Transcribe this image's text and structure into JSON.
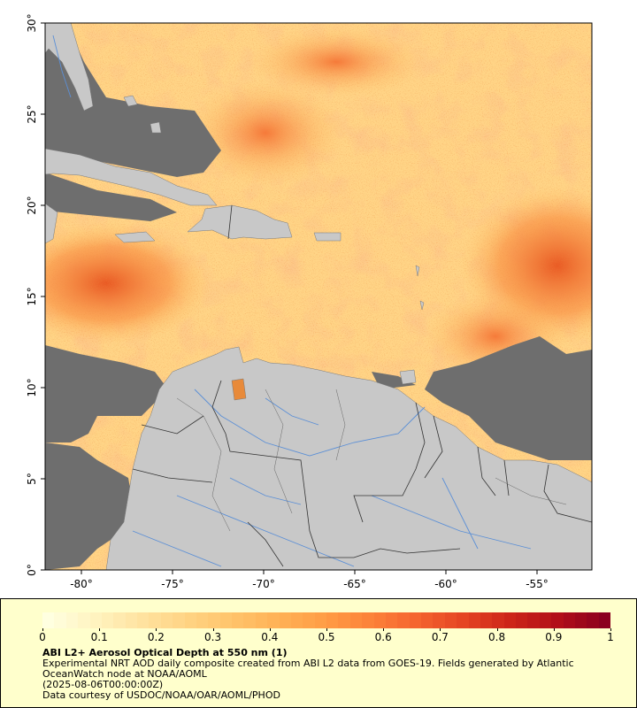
{
  "map": {
    "colors": {
      "land": "#c8c8c8",
      "no_data": "#6e6e6e",
      "rivers": "#5b8fd6",
      "borders": "#333333",
      "panel_bg": "#ffffcc"
    },
    "latitude_labels": [
      "30°",
      "25°",
      "20°",
      "15°",
      "10°",
      "5°",
      "0°"
    ],
    "longitude_labels": [
      "-80°",
      "-75°",
      "-70°",
      "-65°",
      "-60°",
      "-55°"
    ],
    "extent": {
      "lon_min": -82.5,
      "lon_max": -52.5,
      "lat_min": 0,
      "lat_max": 30
    }
  },
  "legend": {
    "scale_min": 0,
    "scale_max": 1,
    "tick_labels": [
      "0",
      "0.1",
      "0.2",
      "0.3",
      "0.4",
      "0.5",
      "0.6",
      "0.7",
      "0.8",
      "0.9",
      "1"
    ],
    "ramp": [
      "#ffffe0",
      "#fff3c0",
      "#ffe3a0",
      "#ffd383",
      "#ffc36a",
      "#ffb055",
      "#ff9c45",
      "#fc8039",
      "#f4622e",
      "#e44322",
      "#cc2419",
      "#b10f18",
      "#8b001f"
    ],
    "title": "ABI L2+ Aerosol Optical Depth at 550 nm (1)",
    "description": "Experimental NRT AOD daily composite created from ABI L2 data from GOES-19. Fields generated by Atlantic OceanWatch node at NOAA/AOML",
    "timestamp": "(2025-08-06T00:00:00Z)",
    "credit": "Data courtesy of USDOC/NOAA/OAR/AOML/PHOD"
  }
}
